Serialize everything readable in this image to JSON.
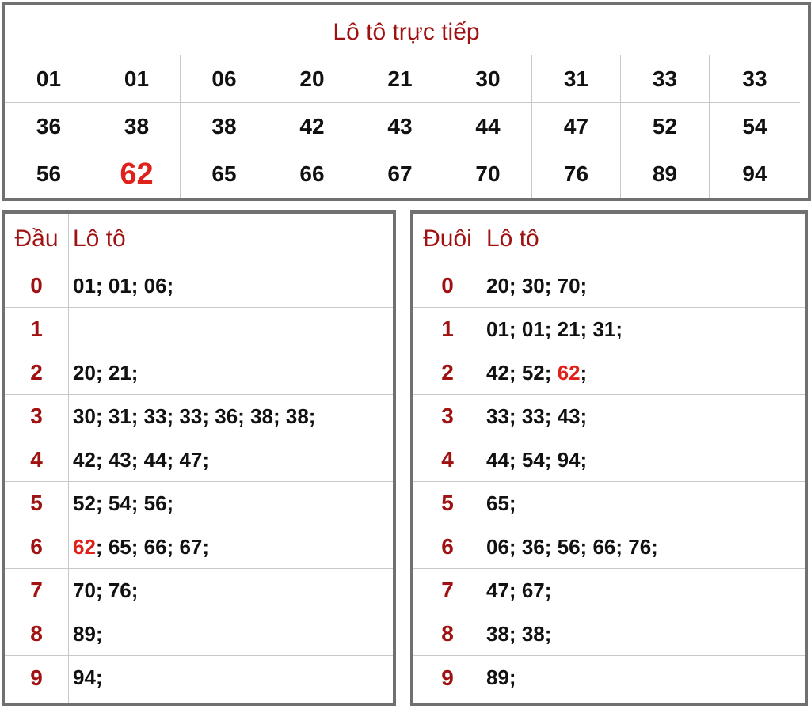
{
  "live": {
    "title": "Lô tô trực tiếp",
    "numbers": [
      "01",
      "01",
      "06",
      "20",
      "21",
      "30",
      "31",
      "33",
      "33",
      "36",
      "38",
      "38",
      "42",
      "43",
      "44",
      "47",
      "52",
      "54",
      "56",
      "62",
      "65",
      "66",
      "67",
      "70",
      "76",
      "89",
      "94"
    ],
    "highlighted_index": 19,
    "highlight_color": "#e0201b"
  },
  "dau": {
    "col1_header": "Đầu",
    "col2_header": "Lô tô",
    "rows": [
      {
        "digit": "0",
        "values": [
          "01",
          "01",
          "06"
        ]
      },
      {
        "digit": "1",
        "values": []
      },
      {
        "digit": "2",
        "values": [
          "20",
          "21"
        ]
      },
      {
        "digit": "3",
        "values": [
          "30",
          "31",
          "33",
          "33",
          "36",
          "38",
          "38"
        ]
      },
      {
        "digit": "4",
        "values": [
          "42",
          "43",
          "44",
          "47"
        ]
      },
      {
        "digit": "5",
        "values": [
          "52",
          "54",
          "56"
        ]
      },
      {
        "digit": "6",
        "values": [
          "62",
          "65",
          "66",
          "67"
        ]
      },
      {
        "digit": "7",
        "values": [
          "70",
          "76"
        ]
      },
      {
        "digit": "8",
        "values": [
          "89"
        ]
      },
      {
        "digit": "9",
        "values": [
          "94"
        ]
      }
    ]
  },
  "duoi": {
    "col1_header": "Đuôi",
    "col2_header": "Lô tô",
    "rows": [
      {
        "digit": "0",
        "values": [
          "20",
          "30",
          "70"
        ]
      },
      {
        "digit": "1",
        "values": [
          "01",
          "01",
          "21",
          "31"
        ]
      },
      {
        "digit": "2",
        "values": [
          "42",
          "52",
          "62"
        ]
      },
      {
        "digit": "3",
        "values": [
          "33",
          "33",
          "43"
        ]
      },
      {
        "digit": "4",
        "values": [
          "44",
          "54",
          "94"
        ]
      },
      {
        "digit": "5",
        "values": [
          "65"
        ]
      },
      {
        "digit": "6",
        "values": [
          "06",
          "36",
          "56",
          "66",
          "76"
        ]
      },
      {
        "digit": "7",
        "values": [
          "47",
          "67"
        ]
      },
      {
        "digit": "8",
        "values": [
          "38",
          "38"
        ]
      },
      {
        "digit": "9",
        "values": [
          "89"
        ]
      }
    ]
  },
  "highlight_value": "62",
  "colors": {
    "header_text": "#a01212",
    "border": "#707070",
    "grid_line": "#c8c8c8"
  }
}
